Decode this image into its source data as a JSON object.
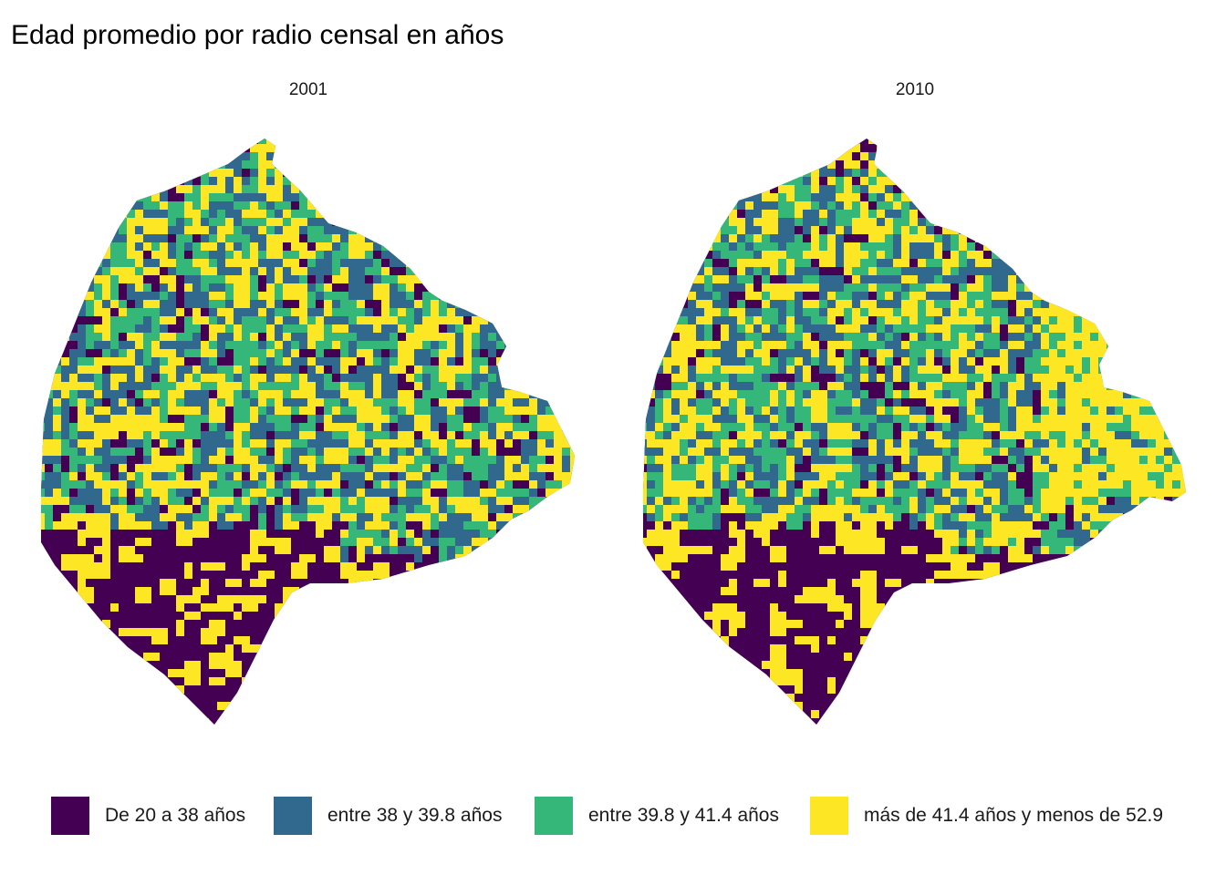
{
  "title": "Edad promedio por radio censal en años",
  "facets": [
    {
      "label": "2001"
    },
    {
      "label": "2010"
    }
  ],
  "legend": [
    {
      "label": "De 20 a 38 años",
      "color": "#440154"
    },
    {
      "label": "entre 38 y 39.8 años",
      "color": "#31688E"
    },
    {
      "label": "entre 39.8 y 41.4 años",
      "color": "#35B779"
    },
    {
      "label": "más de 41.4 años y menos de 52.9",
      "color": "#FDE725"
    }
  ]
}
